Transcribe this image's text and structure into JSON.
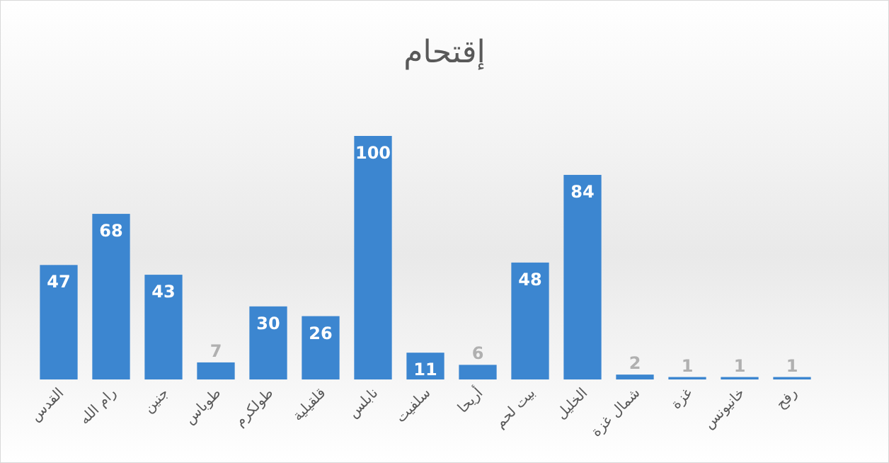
{
  "chart_data": {
    "type": "bar",
    "title": "إقتحام",
    "categories": [
      "القدس",
      "رام الله",
      "جنين",
      "طوباس",
      "طولكرم",
      "قلقيلية",
      "نابلس",
      "سلفيت",
      "أريحا",
      "بيت لحم",
      "الخليل",
      "شمال غزة",
      "غزة",
      "خانيونس",
      "رفح"
    ],
    "values": [
      47,
      68,
      43,
      7,
      30,
      26,
      100,
      11,
      6,
      48,
      84,
      2,
      1,
      1,
      1
    ],
    "color": "#3c86d0",
    "data_labels": true
  }
}
